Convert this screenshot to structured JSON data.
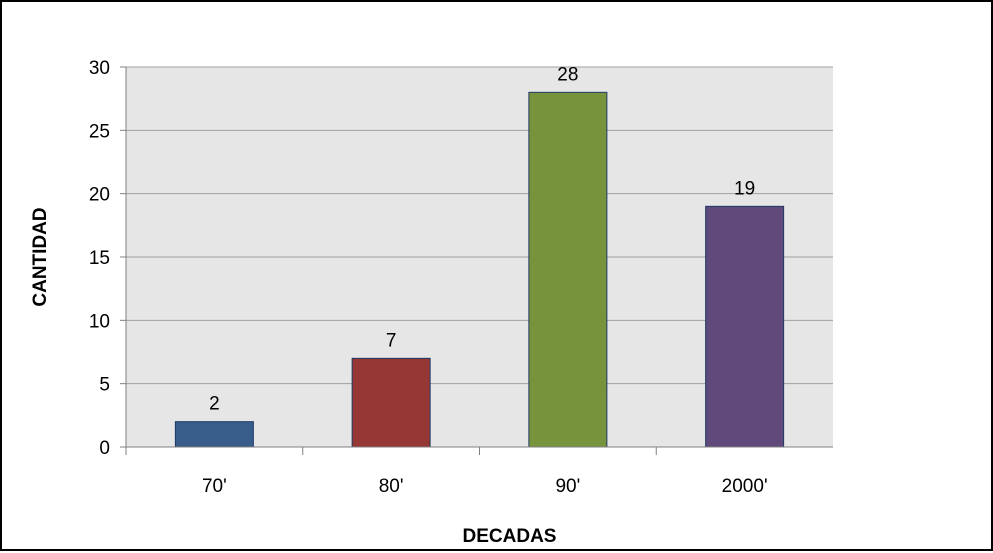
{
  "chart_data": {
    "type": "bar",
    "categories": [
      "70'",
      "80'",
      "90'",
      "2000'"
    ],
    "values": [
      2,
      7,
      28,
      19
    ],
    "data_labels": [
      "2",
      "7",
      "28",
      "19"
    ],
    "colors": [
      "#385D8A",
      "#953735",
      "#77933C",
      "#604A7B"
    ],
    "title": "",
    "xlabel": "DECADAS",
    "ylabel": "CANTIDAD",
    "ylim": [
      0,
      30
    ],
    "yticks": [
      0,
      5,
      10,
      15,
      20,
      25,
      30
    ],
    "ytick_labels": [
      "0",
      "5",
      "10",
      "15",
      "20",
      "25",
      "30"
    ],
    "grid": true,
    "legend": "none",
    "plot_background": "#E6E6E6",
    "gridline_color": "#A0A0A0"
  }
}
